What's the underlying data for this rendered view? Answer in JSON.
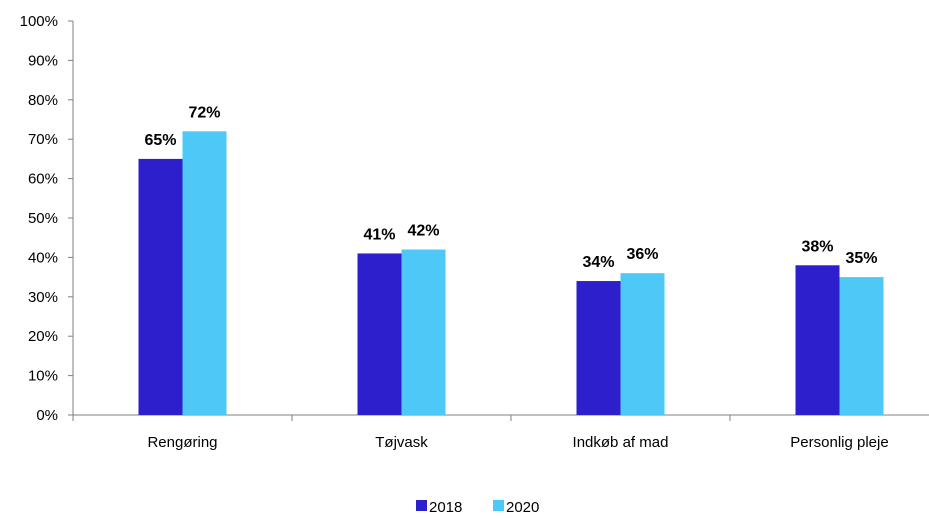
{
  "chart_data": {
    "type": "bar",
    "title": "",
    "xlabel": "",
    "ylabel": "",
    "ylim": [
      0,
      100
    ],
    "y_ticks": [
      "0%",
      "10%",
      "20%",
      "30%",
      "40%",
      "50%",
      "60%",
      "70%",
      "80%",
      "90%",
      "100%"
    ],
    "y_tick_values": [
      0,
      10,
      20,
      30,
      40,
      50,
      60,
      70,
      80,
      90,
      100
    ],
    "categories": [
      "Rengøring",
      "Tøjvask",
      "Indkøb af mad",
      "Personlig pleje"
    ],
    "series": [
      {
        "name": "2018",
        "color": "#2e1fcc",
        "values": [
          65,
          41,
          34,
          38
        ],
        "labels": [
          "65%",
          "41%",
          "34%",
          "38%"
        ]
      },
      {
        "name": "2020",
        "color": "#4ec9f7",
        "values": [
          72,
          42,
          36,
          35
        ],
        "labels": [
          "72%",
          "42%",
          "36%",
          "35%"
        ]
      }
    ],
    "grid": false,
    "legend_position": "bottom-center"
  }
}
